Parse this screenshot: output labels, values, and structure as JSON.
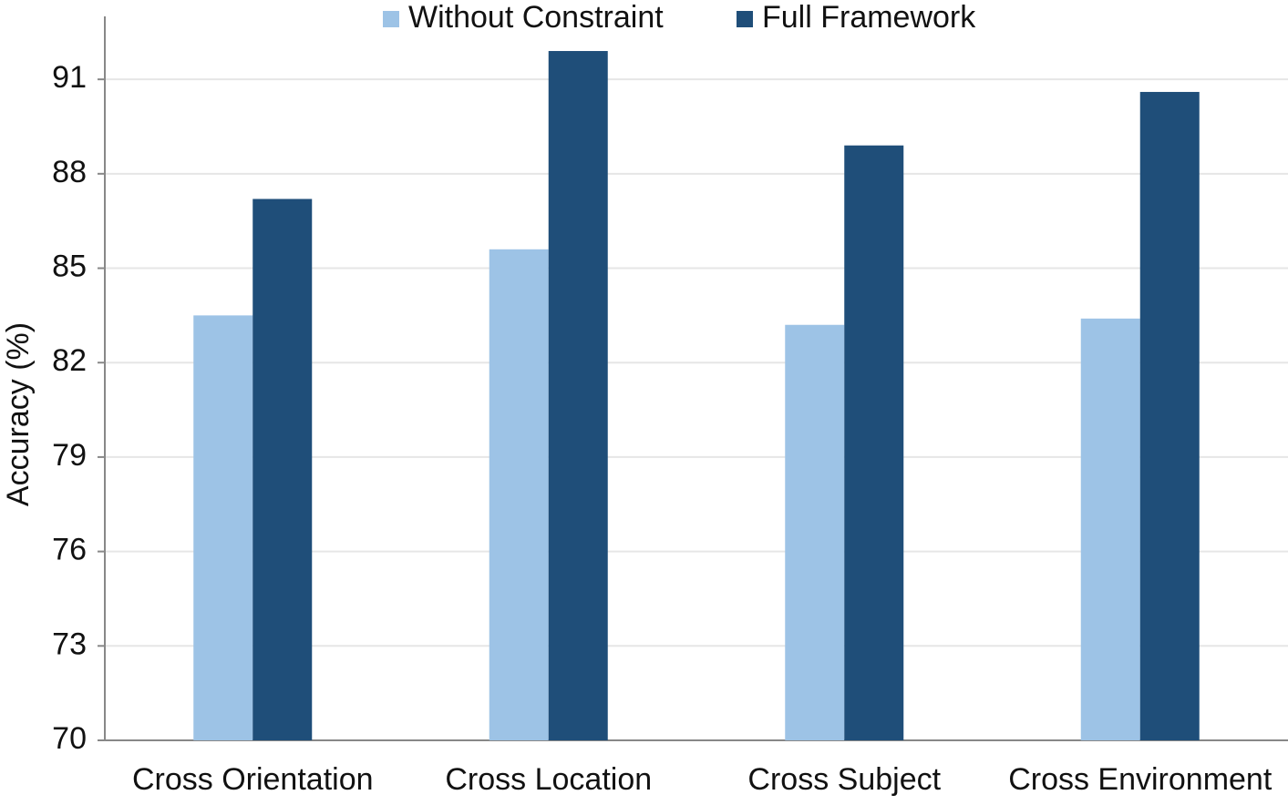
{
  "chart_data": {
    "type": "bar",
    "y_label": "Accuracy (%)",
    "categories": [
      "Cross Orientation",
      "Cross Location",
      "Cross Subject",
      "Cross Environment"
    ],
    "series": [
      {
        "name": "Without Constraint",
        "color": "#9dc3e6",
        "values": [
          83.5,
          85.6,
          83.2,
          83.4
        ]
      },
      {
        "name": "Full Framework",
        "color": "#1f4e79",
        "values": [
          87.2,
          91.9,
          88.9,
          90.6
        ]
      }
    ],
    "ylim": [
      70,
      93
    ],
    "yticks": [
      70,
      73,
      76,
      79,
      82,
      85,
      88,
      91
    ],
    "grid": true,
    "legend": "top"
  }
}
